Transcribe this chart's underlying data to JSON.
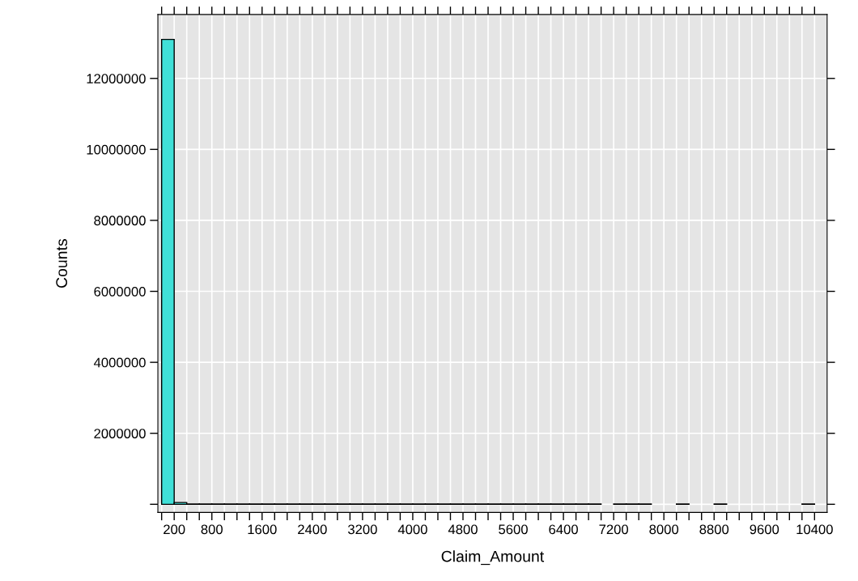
{
  "chart_data": {
    "type": "histogram",
    "xlabel": "Claim_Amount",
    "ylabel": "Counts",
    "bins": [
      0,
      200,
      400,
      600,
      800,
      1000,
      1200,
      1400,
      1600,
      1800,
      2000,
      2200,
      2400,
      2600,
      2800,
      3000,
      3200,
      3400,
      3600,
      3800,
      4000,
      4200,
      4400,
      4600,
      4800,
      5000,
      5200,
      5400,
      5600,
      5800,
      6000,
      6200,
      6400,
      6600,
      6800,
      7000,
      7200,
      7400,
      7600,
      7800,
      8000,
      8200,
      8400,
      8600,
      8800,
      9000,
      9200,
      9400,
      9600,
      9800,
      10000,
      10200,
      10400,
      10600
    ],
    "values": [
      13100000,
      50000,
      10000,
      10000,
      10000,
      10000,
      10000,
      10000,
      10000,
      10000,
      10000,
      10000,
      10000,
      10000,
      10000,
      10000,
      10000,
      10000,
      10000,
      10000,
      10000,
      10000,
      10000,
      10000,
      10000,
      10000,
      10000,
      10000,
      10000,
      10000,
      10000,
      10000,
      10000,
      10000,
      10000,
      null,
      10000,
      10000,
      10000,
      null,
      null,
      10000,
      null,
      null,
      10000,
      null,
      null,
      null,
      null,
      null,
      null,
      10000,
      null
    ],
    "color": "#40e0d8",
    "xlim": [
      -60,
      10600
    ],
    "xticks": [
      {
        "value": 0,
        "label": null
      },
      200,
      {
        "value": 400,
        "label": null
      },
      {
        "value": 600,
        "label": null
      },
      800,
      {
        "value": 1000,
        "label": null
      },
      {
        "value": 1200,
        "label": null
      },
      {
        "value": 1400,
        "label": null
      },
      1600,
      {
        "value": 1800,
        "label": null
      },
      {
        "value": 2000,
        "label": null
      },
      {
        "value": 2200,
        "label": null
      },
      2400,
      {
        "value": 2600,
        "label": null
      },
      {
        "value": 2800,
        "label": null
      },
      {
        "value": 3000,
        "label": null
      },
      3200,
      {
        "value": 3400,
        "label": null
      },
      {
        "value": 3600,
        "label": null
      },
      {
        "value": 3800,
        "label": null
      },
      4000,
      {
        "value": 4200,
        "label": null
      },
      {
        "value": 4400,
        "label": null
      },
      {
        "value": 4600,
        "label": null
      },
      4800,
      {
        "value": 5000,
        "label": null
      },
      {
        "value": 5200,
        "label": null
      },
      {
        "value": 5400,
        "label": null
      },
      5600,
      {
        "value": 5800,
        "label": null
      },
      {
        "value": 6000,
        "label": null
      },
      {
        "value": 6200,
        "label": null
      },
      6400,
      {
        "value": 6600,
        "label": null
      },
      {
        "value": 6800,
        "label": null
      },
      {
        "value": 7000,
        "label": null
      },
      7200,
      {
        "value": 7400,
        "label": null
      },
      {
        "value": 7600,
        "label": null
      },
      {
        "value": 7800,
        "label": null
      },
      8000,
      {
        "value": 8200,
        "label": null
      },
      {
        "value": 8400,
        "label": null
      },
      {
        "value": 8600,
        "label": null
      },
      8800,
      {
        "value": 9000,
        "label": null
      },
      {
        "value": 9200,
        "label": null
      },
      {
        "value": 9400,
        "label": null
      },
      9600,
      {
        "value": 9800,
        "label": null
      },
      {
        "value": 10000,
        "label": null
      },
      {
        "value": 10200,
        "label": null
      },
      10400
    ],
    "ylim": [
      -230000,
      13800000
    ],
    "yticks": [
      {
        "value": 0,
        "label": null
      },
      2000000,
      4000000,
      6000000,
      8000000,
      10000000,
      12000000
    ],
    "grid": true
  }
}
